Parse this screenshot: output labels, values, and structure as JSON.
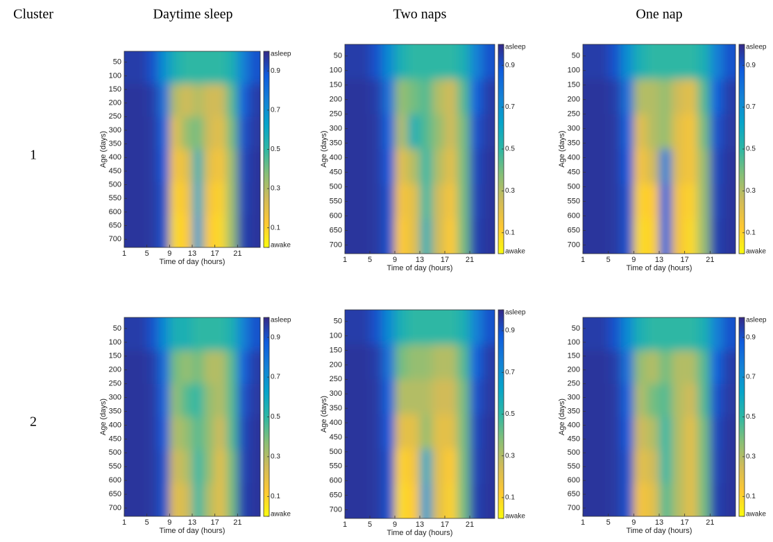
{
  "figure": {
    "corner": "Cluster",
    "columns": [
      "Daytime sleep",
      "Two naps",
      "One nap"
    ],
    "rows": [
      "1",
      "2"
    ]
  },
  "chart_data": [
    {
      "type": "heatmap",
      "xlabel": "Time of day (hours)",
      "ylabel": "Age (days)",
      "colormap": "parula",
      "xbins": [
        1,
        3,
        5,
        7,
        9,
        11,
        13,
        15,
        17,
        19,
        21,
        23,
        25
      ],
      "ybins": [
        10,
        130,
        250,
        370,
        490,
        610,
        730
      ],
      "xlim": [
        1,
        25
      ],
      "ylim": [
        10,
        730
      ],
      "y_inverted": true,
      "xticks": [
        1,
        5,
        9,
        13,
        17,
        21
      ],
      "yticks": [
        50,
        100,
        150,
        200,
        250,
        300,
        350,
        400,
        450,
        500,
        550,
        600,
        650,
        700
      ],
      "clim": [
        0,
        1
      ],
      "cticks": [
        {
          "value": 0,
          "label": "awake"
        },
        0.1,
        0.3,
        0.5,
        0.7,
        0.9,
        {
          "value": 1,
          "label": "asleep"
        }
      ],
      "values": [
        [
          0.95,
          0.95,
          0.9,
          0.7,
          0.55,
          0.5,
          0.5,
          0.5,
          0.5,
          0.55,
          0.75,
          0.9
        ],
        [
          0.97,
          0.97,
          0.95,
          0.8,
          0.3,
          0.25,
          0.3,
          0.25,
          0.25,
          0.45,
          0.85,
          0.95
        ],
        [
          0.97,
          0.97,
          0.96,
          0.85,
          0.2,
          0.35,
          0.4,
          0.25,
          0.2,
          0.4,
          0.9,
          0.96
        ],
        [
          0.97,
          0.97,
          0.96,
          0.88,
          0.15,
          0.2,
          0.55,
          0.2,
          0.15,
          0.35,
          0.92,
          0.97
        ],
        [
          0.97,
          0.97,
          0.96,
          0.9,
          0.1,
          0.15,
          0.6,
          0.15,
          0.1,
          0.35,
          0.93,
          0.97
        ],
        [
          0.97,
          0.97,
          0.96,
          0.9,
          0.08,
          0.12,
          0.65,
          0.12,
          0.08,
          0.35,
          0.94,
          0.97
        ]
      ]
    },
    {
      "type": "heatmap",
      "xlabel": "Time of day (hours)",
      "ylabel": "Age (days)",
      "colormap": "parula",
      "xbins": [
        1,
        3,
        5,
        7,
        9,
        11,
        13,
        15,
        17,
        19,
        21,
        23,
        25
      ],
      "ybins": [
        10,
        130,
        250,
        370,
        490,
        610,
        730
      ],
      "xlim": [
        1,
        25
      ],
      "ylim": [
        10,
        730
      ],
      "y_inverted": true,
      "xticks": [
        1,
        5,
        9,
        13,
        17,
        21
      ],
      "yticks": [
        50,
        100,
        150,
        200,
        250,
        300,
        350,
        400,
        450,
        500,
        550,
        600,
        650,
        700
      ],
      "clim": [
        0,
        1
      ],
      "cticks": [
        {
          "value": 0,
          "label": "awake"
        },
        0.1,
        0.3,
        0.5,
        0.7,
        0.9,
        {
          "value": 1,
          "label": "asleep"
        }
      ],
      "values": [
        [
          0.95,
          0.95,
          0.9,
          0.72,
          0.55,
          0.5,
          0.5,
          0.5,
          0.5,
          0.55,
          0.75,
          0.9
        ],
        [
          0.97,
          0.97,
          0.95,
          0.8,
          0.35,
          0.4,
          0.45,
          0.3,
          0.25,
          0.45,
          0.85,
          0.95
        ],
        [
          0.97,
          0.97,
          0.96,
          0.85,
          0.3,
          0.55,
          0.45,
          0.35,
          0.25,
          0.4,
          0.9,
          0.96
        ],
        [
          0.97,
          0.97,
          0.96,
          0.88,
          0.2,
          0.3,
          0.5,
          0.3,
          0.2,
          0.4,
          0.92,
          0.97
        ],
        [
          0.97,
          0.97,
          0.96,
          0.9,
          0.15,
          0.2,
          0.5,
          0.25,
          0.15,
          0.4,
          0.93,
          0.97
        ],
        [
          0.97,
          0.97,
          0.96,
          0.9,
          0.12,
          0.2,
          0.55,
          0.25,
          0.12,
          0.4,
          0.94,
          0.97
        ]
      ]
    },
    {
      "type": "heatmap",
      "xlabel": "Time of day (hours)",
      "ylabel": "Age (days)",
      "colormap": "parula",
      "xbins": [
        1,
        3,
        5,
        7,
        9,
        11,
        13,
        15,
        17,
        19,
        21,
        23,
        25
      ],
      "ybins": [
        10,
        130,
        250,
        370,
        490,
        610,
        730
      ],
      "xlim": [
        1,
        25
      ],
      "ylim": [
        10,
        730
      ],
      "y_inverted": true,
      "xticks": [
        1,
        5,
        9,
        13,
        17,
        21
      ],
      "yticks": [
        50,
        100,
        150,
        200,
        250,
        300,
        350,
        400,
        450,
        500,
        550,
        600,
        650,
        700
      ],
      "clim": [
        0,
        1
      ],
      "cticks": [
        {
          "value": 0,
          "label": "awake"
        },
        0.1,
        0.3,
        0.5,
        0.7,
        0.9,
        {
          "value": 1,
          "label": "asleep"
        }
      ],
      "values": [
        [
          0.95,
          0.95,
          0.9,
          0.7,
          0.55,
          0.5,
          0.5,
          0.5,
          0.5,
          0.55,
          0.75,
          0.9
        ],
        [
          0.97,
          0.97,
          0.95,
          0.8,
          0.3,
          0.3,
          0.35,
          0.25,
          0.2,
          0.45,
          0.85,
          0.95
        ],
        [
          0.97,
          0.97,
          0.96,
          0.85,
          0.2,
          0.3,
          0.35,
          0.2,
          0.15,
          0.4,
          0.9,
          0.96
        ],
        [
          0.97,
          0.97,
          0.96,
          0.88,
          0.15,
          0.25,
          0.75,
          0.2,
          0.15,
          0.35,
          0.92,
          0.97
        ],
        [
          0.97,
          0.97,
          0.96,
          0.9,
          0.1,
          0.12,
          0.85,
          0.15,
          0.1,
          0.35,
          0.93,
          0.97
        ],
        [
          0.97,
          0.97,
          0.96,
          0.9,
          0.08,
          0.1,
          0.85,
          0.15,
          0.08,
          0.35,
          0.94,
          0.97
        ]
      ]
    },
    {
      "type": "heatmap",
      "xlabel": "Time of day (hours)",
      "ylabel": "Age (days)",
      "colormap": "parula",
      "xbins": [
        1,
        3,
        5,
        7,
        9,
        11,
        13,
        15,
        17,
        19,
        21,
        23,
        25
      ],
      "ybins": [
        10,
        130,
        250,
        370,
        490,
        610,
        730
      ],
      "xlim": [
        1,
        25
      ],
      "ylim": [
        10,
        730
      ],
      "y_inverted": true,
      "xticks": [
        1,
        5,
        9,
        13,
        17,
        21
      ],
      "yticks": [
        50,
        100,
        150,
        200,
        250,
        300,
        350,
        400,
        450,
        500,
        550,
        600,
        650,
        700
      ],
      "clim": [
        0,
        1
      ],
      "cticks": [
        {
          "value": 0,
          "label": "awake"
        },
        0.1,
        0.3,
        0.5,
        0.7,
        0.9,
        {
          "value": 1,
          "label": "asleep"
        }
      ],
      "values": [
        [
          0.95,
          0.95,
          0.9,
          0.72,
          0.55,
          0.55,
          0.5,
          0.5,
          0.5,
          0.55,
          0.75,
          0.9
        ],
        [
          0.97,
          0.97,
          0.95,
          0.82,
          0.4,
          0.35,
          0.4,
          0.3,
          0.3,
          0.45,
          0.85,
          0.95
        ],
        [
          0.97,
          0.97,
          0.96,
          0.85,
          0.35,
          0.45,
          0.5,
          0.35,
          0.3,
          0.45,
          0.9,
          0.96
        ],
        [
          0.97,
          0.97,
          0.96,
          0.88,
          0.3,
          0.35,
          0.45,
          0.35,
          0.25,
          0.45,
          0.92,
          0.97
        ],
        [
          0.97,
          0.97,
          0.96,
          0.9,
          0.25,
          0.3,
          0.5,
          0.35,
          0.2,
          0.4,
          0.93,
          0.97
        ],
        [
          0.97,
          0.97,
          0.96,
          0.9,
          0.2,
          0.25,
          0.5,
          0.3,
          0.2,
          0.4,
          0.94,
          0.97
        ]
      ]
    },
    {
      "type": "heatmap",
      "xlabel": "Time of day (hours)",
      "ylabel": "Age (days)",
      "colormap": "parula",
      "xbins": [
        1,
        3,
        5,
        7,
        9,
        11,
        13,
        15,
        17,
        19,
        21,
        23,
        25
      ],
      "ybins": [
        10,
        130,
        250,
        370,
        490,
        610,
        730
      ],
      "xlim": [
        1,
        25
      ],
      "ylim": [
        10,
        730
      ],
      "y_inverted": true,
      "xticks": [
        1,
        5,
        9,
        13,
        17,
        21
      ],
      "yticks": [
        50,
        100,
        150,
        200,
        250,
        300,
        350,
        400,
        450,
        500,
        550,
        600,
        650,
        700
      ],
      "clim": [
        0,
        1
      ],
      "cticks": [
        {
          "value": 0,
          "label": "awake"
        },
        0.1,
        0.3,
        0.5,
        0.7,
        0.9,
        {
          "value": 1,
          "label": "asleep"
        }
      ],
      "values": [
        [
          0.95,
          0.95,
          0.9,
          0.72,
          0.55,
          0.5,
          0.5,
          0.5,
          0.5,
          0.55,
          0.75,
          0.9
        ],
        [
          0.97,
          0.97,
          0.95,
          0.8,
          0.4,
          0.35,
          0.35,
          0.3,
          0.3,
          0.45,
          0.85,
          0.95
        ],
        [
          0.97,
          0.97,
          0.96,
          0.85,
          0.3,
          0.3,
          0.3,
          0.25,
          0.25,
          0.4,
          0.9,
          0.96
        ],
        [
          0.97,
          0.97,
          0.96,
          0.88,
          0.2,
          0.2,
          0.35,
          0.2,
          0.2,
          0.4,
          0.92,
          0.97
        ],
        [
          0.97,
          0.97,
          0.96,
          0.9,
          0.1,
          0.15,
          0.6,
          0.2,
          0.12,
          0.4,
          0.93,
          0.97
        ],
        [
          0.97,
          0.97,
          0.96,
          0.9,
          0.08,
          0.12,
          0.65,
          0.2,
          0.1,
          0.4,
          0.94,
          0.97
        ]
      ]
    },
    {
      "type": "heatmap",
      "xlabel": "Time of day (hours)",
      "ylabel": "Age (days)",
      "colormap": "parula",
      "xbins": [
        1,
        3,
        5,
        7,
        9,
        11,
        13,
        15,
        17,
        19,
        21,
        23,
        25
      ],
      "ybins": [
        10,
        130,
        250,
        370,
        490,
        610,
        730
      ],
      "xlim": [
        1,
        25
      ],
      "ylim": [
        10,
        730
      ],
      "y_inverted": true,
      "xticks": [
        1,
        5,
        9,
        13,
        17,
        21
      ],
      "yticks": [
        50,
        100,
        150,
        200,
        250,
        300,
        350,
        400,
        450,
        500,
        550,
        600,
        650,
        700
      ],
      "clim": [
        0,
        1
      ],
      "cticks": [
        {
          "value": 0,
          "label": "awake"
        },
        0.1,
        0.3,
        0.5,
        0.7,
        0.9,
        {
          "value": 1,
          "label": "asleep"
        }
      ],
      "values": [
        [
          0.95,
          0.95,
          0.9,
          0.72,
          0.55,
          0.5,
          0.5,
          0.5,
          0.5,
          0.55,
          0.75,
          0.9
        ],
        [
          0.97,
          0.97,
          0.95,
          0.8,
          0.35,
          0.3,
          0.4,
          0.3,
          0.3,
          0.45,
          0.85,
          0.95
        ],
        [
          0.97,
          0.97,
          0.96,
          0.85,
          0.3,
          0.4,
          0.45,
          0.3,
          0.25,
          0.45,
          0.9,
          0.96
        ],
        [
          0.97,
          0.97,
          0.96,
          0.88,
          0.25,
          0.3,
          0.5,
          0.3,
          0.2,
          0.4,
          0.92,
          0.97
        ],
        [
          0.97,
          0.97,
          0.96,
          0.9,
          0.2,
          0.25,
          0.5,
          0.3,
          0.2,
          0.4,
          0.93,
          0.97
        ],
        [
          0.97,
          0.97,
          0.96,
          0.9,
          0.15,
          0.2,
          0.45,
          0.3,
          0.2,
          0.4,
          0.94,
          0.97
        ]
      ]
    }
  ]
}
